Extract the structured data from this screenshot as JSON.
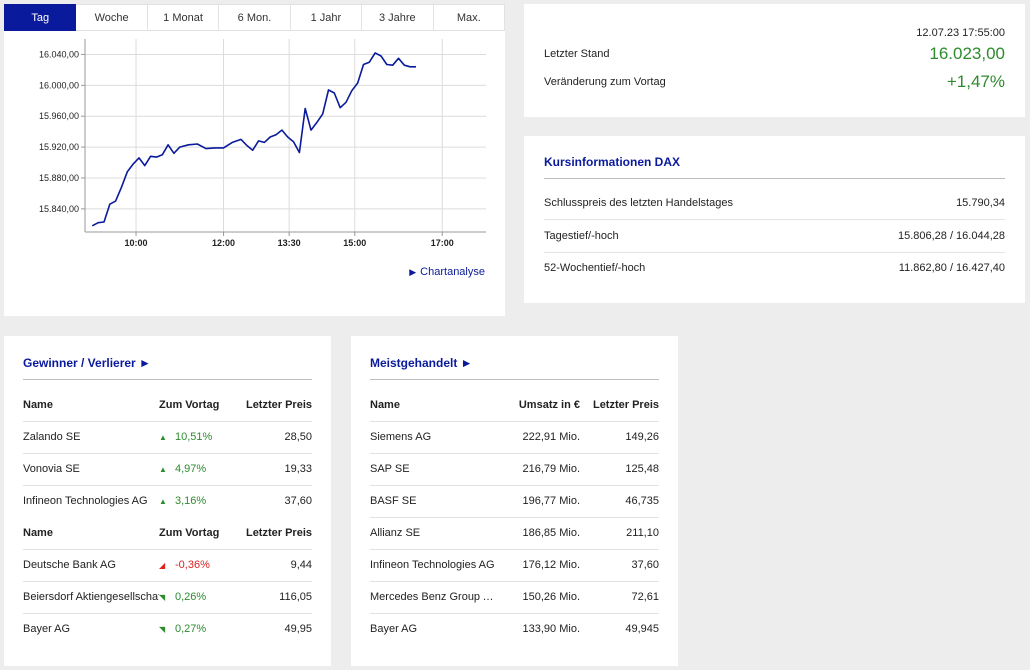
{
  "tabs": [
    "Tag",
    "Woche",
    "1 Monat",
    "6 Mon.",
    "1 Jahr",
    "3 Jahre",
    "Max."
  ],
  "active_tab": 0,
  "chart_link": "Chartanalyse",
  "chart_data": {
    "type": "line",
    "title": "",
    "xlabel": "",
    "ylabel": "",
    "x_ticks": [
      "10:00",
      "12:00",
      "13:30",
      "15:00",
      "17:00"
    ],
    "y_ticks": [
      "15.840,00",
      "15.880,00",
      "15.920,00",
      "15.960,00",
      "16.000,00",
      "16.040,00"
    ],
    "ylim": [
      15810,
      16060
    ],
    "x_range_minutes": [
      530,
      1080
    ],
    "grid": true,
    "color": "#0a1a9c",
    "series": [
      {
        "values": [
          [
            540,
            15818
          ],
          [
            548,
            15822
          ],
          [
            556,
            15823
          ],
          [
            564,
            15846
          ],
          [
            572,
            15850
          ],
          [
            580,
            15868
          ],
          [
            588,
            15888
          ],
          [
            596,
            15898
          ],
          [
            604,
            15906
          ],
          [
            612,
            15896
          ],
          [
            620,
            15908
          ],
          [
            628,
            15907
          ],
          [
            636,
            15910
          ],
          [
            644,
            15923
          ],
          [
            652,
            15912
          ],
          [
            660,
            15920
          ],
          [
            672,
            15923
          ],
          [
            684,
            15924
          ],
          [
            696,
            15918
          ],
          [
            708,
            15919
          ],
          [
            720,
            15919
          ],
          [
            732,
            15926
          ],
          [
            744,
            15930
          ],
          [
            752,
            15922
          ],
          [
            760,
            15916
          ],
          [
            768,
            15928
          ],
          [
            776,
            15926
          ],
          [
            784,
            15933
          ],
          [
            792,
            15936
          ],
          [
            800,
            15942
          ],
          [
            808,
            15933
          ],
          [
            816,
            15927
          ],
          [
            824,
            15913
          ],
          [
            832,
            15970
          ],
          [
            840,
            15942
          ],
          [
            848,
            15952
          ],
          [
            856,
            15963
          ],
          [
            864,
            15994
          ],
          [
            872,
            15990
          ],
          [
            880,
            15971
          ],
          [
            888,
            15978
          ],
          [
            896,
            15993
          ],
          [
            904,
            16003
          ],
          [
            912,
            16027
          ],
          [
            920,
            16030
          ],
          [
            928,
            16042
          ],
          [
            936,
            16038
          ],
          [
            944,
            16027
          ],
          [
            952,
            16026
          ],
          [
            960,
            16035
          ],
          [
            968,
            16026
          ],
          [
            976,
            16024
          ],
          [
            984,
            16024
          ]
        ]
      }
    ]
  },
  "quote": {
    "timestamp": "12.07.23 17:55:00",
    "last_label": "Letzter Stand",
    "last_value": "16.023,00",
    "change_label": "Veränderung zum Vortag",
    "change_value": "+1,47%"
  },
  "info": {
    "title": "Kursinformationen DAX",
    "rows": [
      {
        "label": "Schlusspreis des letzten Handelstages",
        "value": "15.790,34"
      },
      {
        "label": "Tagestief/-hoch",
        "value": "15.806,28 / 16.044,28"
      },
      {
        "label": "52-Wochentief/-hoch",
        "value": "11.862,80 / 16.427,40"
      }
    ]
  },
  "gainers_losers": {
    "title": "Gewinner / Verlierer ►",
    "header": {
      "name": "Name",
      "change": "Zum Vortag",
      "price": "Letzter Preis"
    },
    "gainers": [
      {
        "name": "Zalando SE",
        "change": "10,51%",
        "price": "28,50",
        "arrow": "▲"
      },
      {
        "name": "Vonovia SE",
        "change": "4,97%",
        "price": "19,33",
        "arrow": "▲"
      },
      {
        "name": "Infineon Technologies AG",
        "change": "3,16%",
        "price": "37,60",
        "arrow": "▲"
      }
    ],
    "losers": [
      {
        "name": "Deutsche Bank AG",
        "change": "-0,36%",
        "price": "9,44",
        "arrow": "◢"
      },
      {
        "name": "Beiersdorf Aktiengesellschaft",
        "change": "0,26%",
        "price": "116,05",
        "arrow": "◥"
      },
      {
        "name": "Bayer AG",
        "change": "0,27%",
        "price": "49,95",
        "arrow": "◥"
      }
    ]
  },
  "most_traded": {
    "title": "Meistgehandelt ►",
    "header": {
      "name": "Name",
      "volume": "Umsatz in €",
      "price": "Letzter Preis"
    },
    "rows": [
      {
        "name": "Siemens AG",
        "volume": "222,91 Mio.",
        "price": "149,26"
      },
      {
        "name": "SAP SE",
        "volume": "216,79 Mio.",
        "price": "125,48"
      },
      {
        "name": "BASF SE",
        "volume": "196,77 Mio.",
        "price": "46,735"
      },
      {
        "name": "Allianz SE",
        "volume": "186,85 Mio.",
        "price": "211,10"
      },
      {
        "name": "Infineon Technologies AG",
        "volume": "176,12 Mio.",
        "price": "37,60"
      },
      {
        "name": "Mercedes Benz Group AG ...",
        "volume": "150,26 Mio.",
        "price": "72,61"
      },
      {
        "name": "Bayer AG",
        "volume": "133,90 Mio.",
        "price": "49,945"
      }
    ]
  }
}
